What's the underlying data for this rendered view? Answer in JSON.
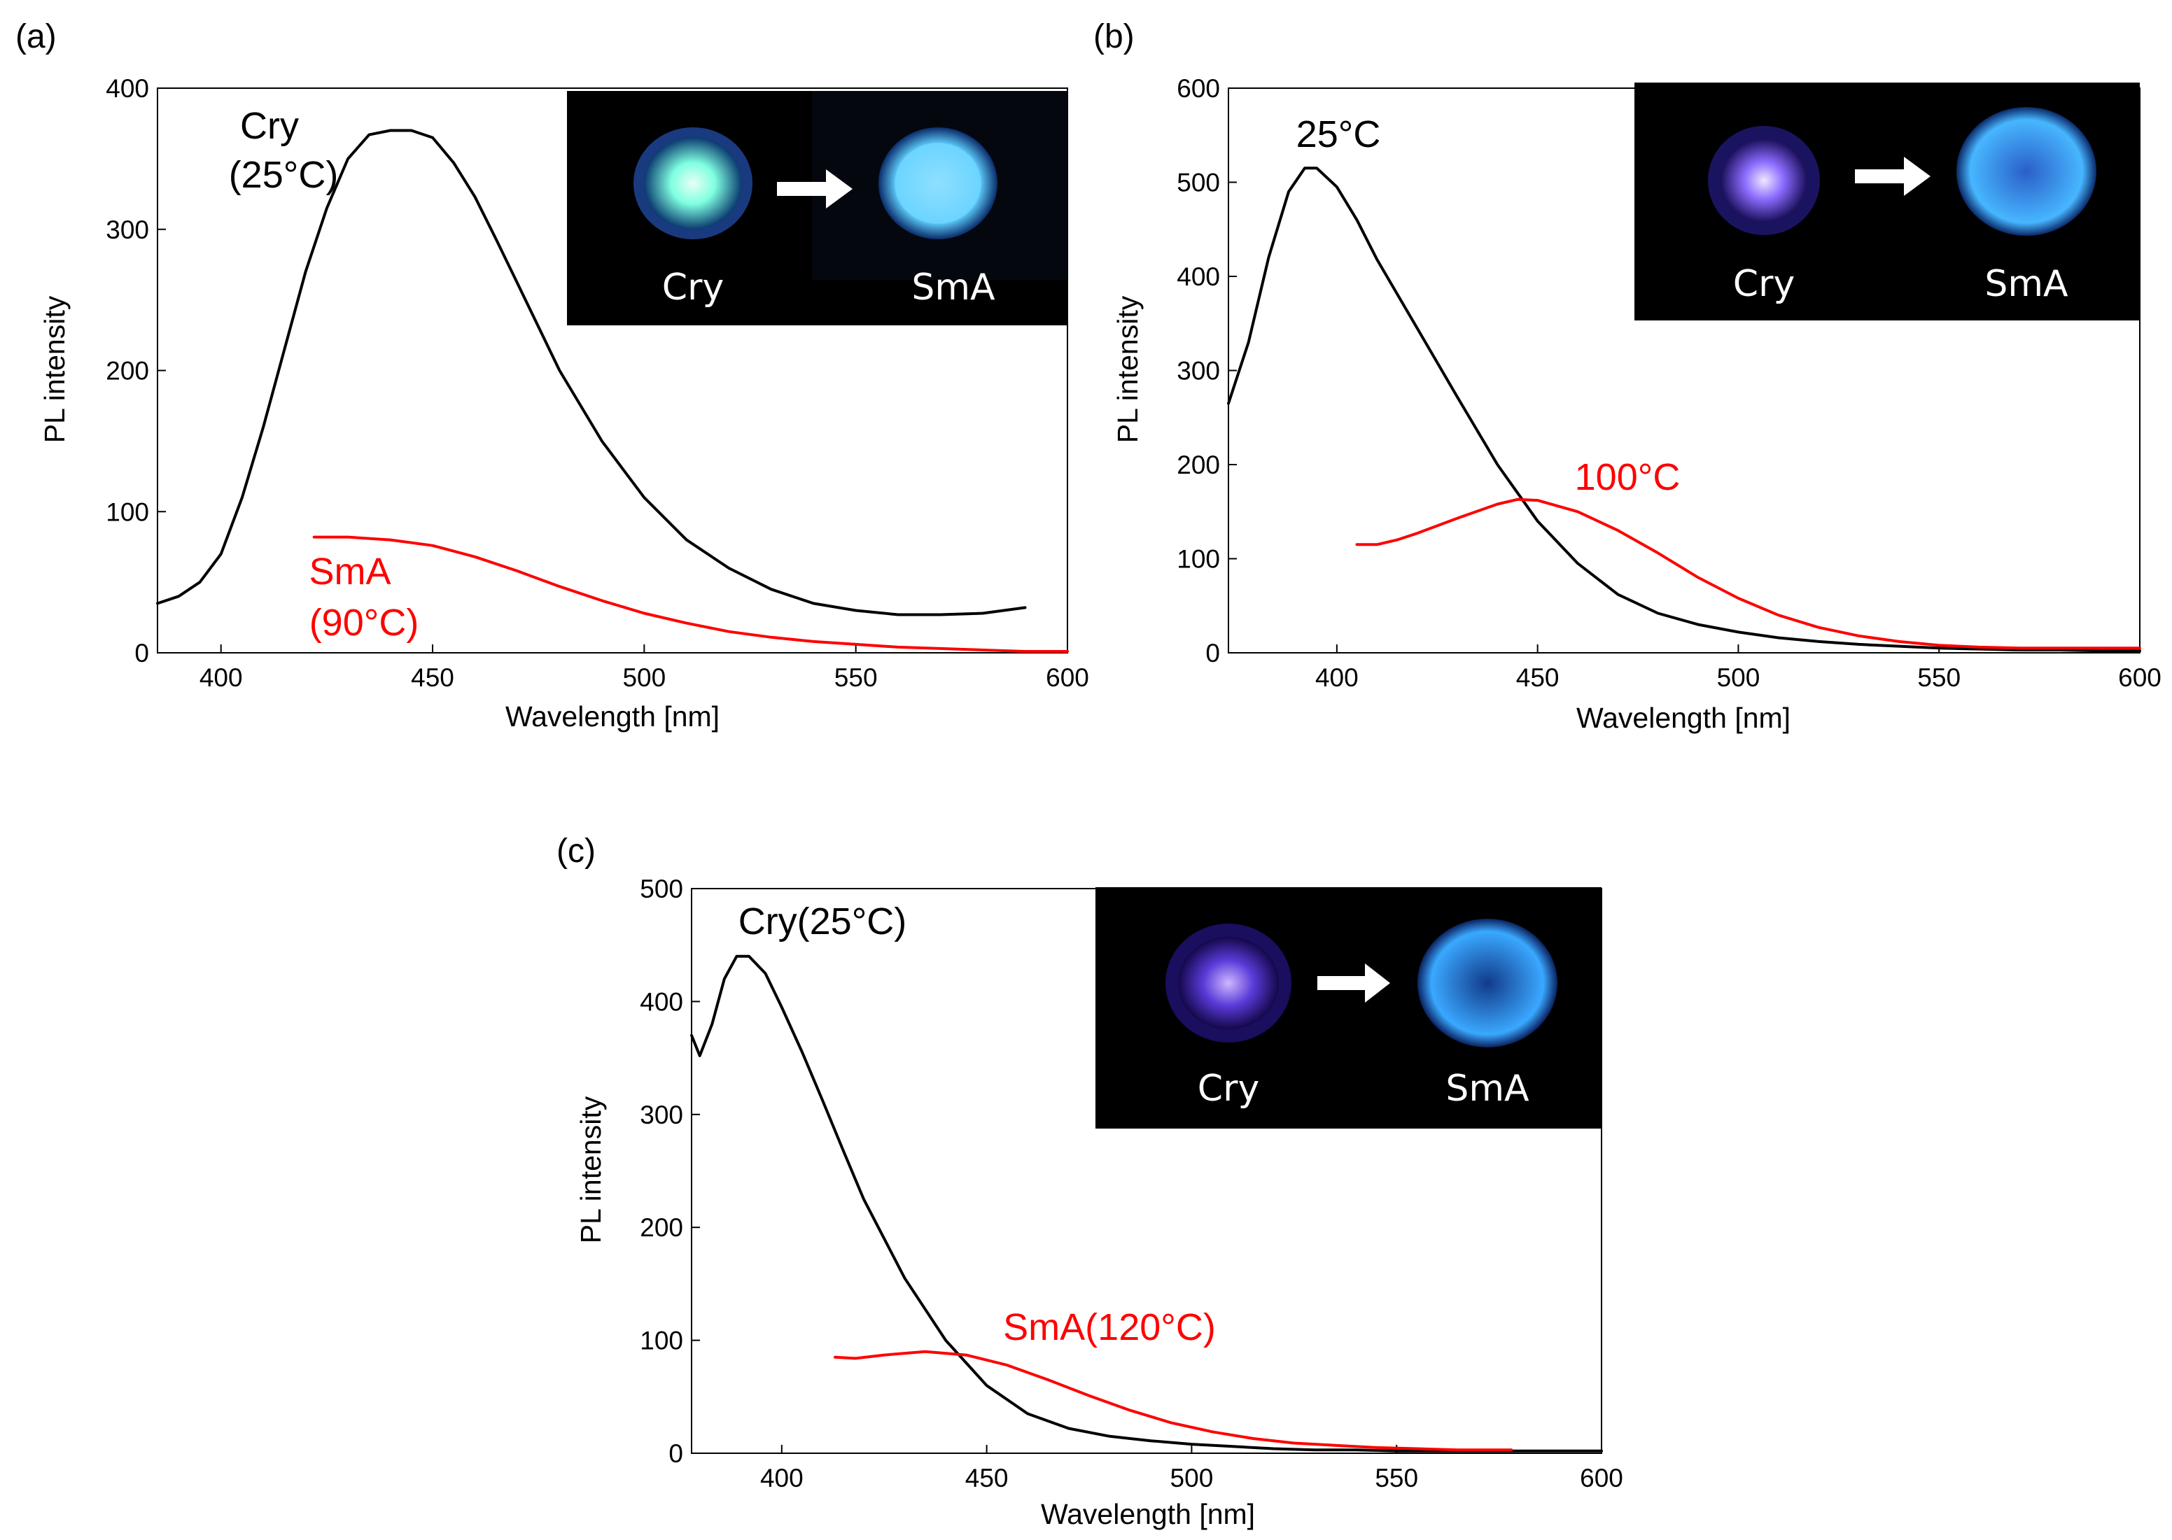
{
  "chart_data": [
    {
      "panel_label": "(a)",
      "type": "line",
      "xlabel": "Wavelength [nm]",
      "ylabel": "PL intensity",
      "xlim": [
        385,
        600
      ],
      "ylim": [
        0,
        400
      ],
      "xticks": [
        400,
        450,
        500,
        550,
        600
      ],
      "yticks": [
        0,
        100,
        200,
        300,
        400
      ],
      "series": [
        {
          "name": "Cry (25°C)",
          "color": "#000000",
          "x": [
            385,
            390,
            395,
            400,
            405,
            410,
            415,
            420,
            425,
            430,
            435,
            440,
            445,
            450,
            455,
            460,
            465,
            470,
            480,
            490,
            500,
            510,
            520,
            530,
            540,
            550,
            560,
            570,
            580,
            590
          ],
          "y": [
            35,
            40,
            50,
            70,
            110,
            160,
            215,
            270,
            315,
            350,
            367,
            370,
            370,
            365,
            347,
            323,
            293,
            262,
            200,
            150,
            110,
            80,
            60,
            45,
            35,
            30,
            27,
            27,
            28,
            32
          ]
        },
        {
          "name": "SmA (90°C)",
          "color": "#ff0000",
          "x": [
            422,
            430,
            440,
            450,
            460,
            470,
            480,
            490,
            500,
            510,
            520,
            530,
            540,
            550,
            560,
            570,
            580,
            590,
            600
          ],
          "y": [
            82,
            82,
            80,
            76,
            68,
            58,
            47,
            37,
            28,
            21,
            15,
            11,
            8,
            6,
            4,
            3,
            2,
            1,
            1
          ]
        }
      ],
      "annotations": [
        {
          "text": "Cry",
          "color": "#000000"
        },
        {
          "text": "(25°C)",
          "color": "#000000"
        },
        {
          "text": "SmA",
          "color": "#ff0000"
        },
        {
          "text": "(90°C)",
          "color": "#ff0000"
        }
      ],
      "inset": {
        "left_label": "Cry",
        "right_label": "SmA",
        "left_glow": "#7fffe0",
        "right_glow": "#5fd0ff"
      }
    },
    {
      "panel_label": "(b)",
      "type": "line",
      "xlabel": "Wavelength [nm]",
      "ylabel": "PL intensity",
      "xlim": [
        373,
        600
      ],
      "ylim": [
        0,
        600
      ],
      "xticks": [
        400,
        450,
        500,
        550,
        600
      ],
      "yticks": [
        0,
        100,
        200,
        300,
        400,
        500,
        600
      ],
      "series": [
        {
          "name": "25°C",
          "color": "#000000",
          "x": [
            373,
            378,
            383,
            388,
            392,
            395,
            400,
            405,
            410,
            420,
            430,
            440,
            450,
            460,
            470,
            480,
            490,
            500,
            510,
            520,
            530,
            540,
            550,
            560,
            570,
            580,
            590,
            600
          ],
          "y": [
            265,
            330,
            420,
            490,
            515,
            515,
            495,
            460,
            418,
            345,
            272,
            200,
            140,
            95,
            62,
            42,
            30,
            22,
            16,
            12,
            9,
            7,
            5,
            4,
            3,
            3,
            2,
            2
          ]
        },
        {
          "name": "100°C",
          "color": "#ff0000",
          "x": [
            405,
            410,
            415,
            420,
            430,
            440,
            445,
            450,
            460,
            470,
            480,
            490,
            500,
            510,
            520,
            530,
            540,
            550,
            560,
            570,
            580,
            590,
            600
          ],
          "y": [
            115,
            115,
            120,
            127,
            143,
            158,
            163,
            162,
            150,
            130,
            106,
            80,
            58,
            40,
            27,
            18,
            12,
            8,
            6,
            5,
            5,
            5,
            5
          ]
        }
      ],
      "annotations": [
        {
          "text": "25°C",
          "color": "#000000"
        },
        {
          "text": "100°C",
          "color": "#ff0000"
        }
      ],
      "inset": {
        "left_label": "Cry",
        "right_label": "SmA",
        "left_glow": "#c9b6ff",
        "right_glow": "#47b6ff"
      }
    },
    {
      "panel_label": "(c)",
      "type": "line",
      "xlabel": "Wavelength [nm]",
      "ylabel": "PL intensity",
      "xlim": [
        378,
        600
      ],
      "ylim": [
        0,
        500
      ],
      "xticks": [
        400,
        450,
        500,
        550,
        600
      ],
      "yticks": [
        0,
        100,
        200,
        300,
        400,
        500
      ],
      "series": [
        {
          "name": "Cry (25°C)",
          "color": "#000000",
          "x": [
            378,
            380,
            383,
            386,
            389,
            392,
            396,
            400,
            405,
            410,
            415,
            420,
            430,
            440,
            450,
            460,
            470,
            480,
            490,
            500,
            510,
            520,
            530,
            540,
            550,
            560,
            570,
            580,
            590,
            600
          ],
          "y": [
            370,
            352,
            380,
            420,
            440,
            440,
            425,
            395,
            355,
            312,
            268,
            225,
            155,
            100,
            60,
            35,
            22,
            15,
            11,
            8,
            6,
            4,
            3,
            3,
            2,
            2,
            2,
            2,
            2,
            2
          ]
        },
        {
          "name": "SmA (120°C)",
          "color": "#ff0000",
          "x": [
            413,
            418,
            425,
            435,
            445,
            455,
            465,
            475,
            485,
            495,
            505,
            515,
            525,
            535,
            545,
            555,
            565,
            575,
            578
          ],
          "y": [
            85,
            84,
            87,
            90,
            87,
            78,
            65,
            51,
            38,
            27,
            19,
            13,
            9,
            7,
            5,
            4,
            3,
            3,
            3
          ]
        }
      ],
      "annotations": [
        {
          "text": "Cry(25°C)",
          "color": "#000000"
        },
        {
          "text": "SmA(120°C)",
          "color": "#ff0000"
        }
      ],
      "inset": {
        "left_label": "Cry",
        "right_label": "SmA",
        "left_glow": "#b49bff",
        "right_glow": "#3aa8ff"
      }
    }
  ]
}
